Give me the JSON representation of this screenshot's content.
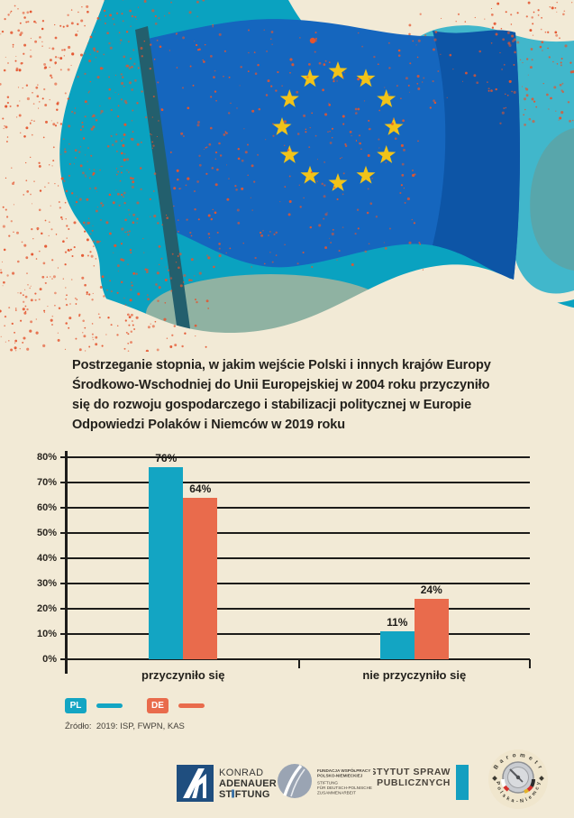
{
  "title": {
    "text": "Postrzeganie stopnia, w jakim wejście Polski i innych krajów Europy\nŚrodkowo-Wschodniej do Unii Europejskiej w 2004 roku przyczyniło\nsię do rozwoju gospodarczego i stabilizacji politycznej w Europie\nOdpowiedzi Polaków i Niemców w 2019 roku"
  },
  "chart_data": {
    "type": "bar",
    "categories": [
      "przyczyniło się",
      "nie przyczyniło się"
    ],
    "series": [
      {
        "name": "PL",
        "color": "#13a5c3",
        "values": [
          76,
          11
        ]
      },
      {
        "name": "DE",
        "color": "#e96b4c",
        "values": [
          64,
          24
        ]
      }
    ],
    "value_labels": [
      [
        "76%",
        "64%"
      ],
      [
        "11%",
        "24%"
      ]
    ],
    "ylim": [
      0,
      80
    ],
    "ytick_step": 10,
    "ytick_labels": [
      "0%",
      "10%",
      "20%",
      "30%",
      "40%",
      "50%",
      "60%",
      "70%",
      "80%"
    ],
    "grid": true,
    "legend_position": "bottom-left"
  },
  "legend": {
    "items": [
      {
        "code": "PL",
        "color": "#13a5c3"
      },
      {
        "code": "DE",
        "color": "#e96b4c"
      }
    ]
  },
  "source": {
    "text": "Źródło:  2019: ISP, FWPN, KAS"
  },
  "logos": {
    "kas": {
      "lines": [
        "KONRAD",
        "ADENAUER",
        "STIFTUNG"
      ]
    },
    "fwpn": {
      "lines": [
        "FUNDACJA WSPÓŁPRACY",
        "POLSKO-NIEMIECKIEJ",
        "STIFTUNG",
        "FÜR DEUTSCH-POLNISCHE",
        "ZUSAMMENARBEIT"
      ]
    },
    "isp": {
      "lines": [
        "INSTYTUT SPRAW",
        "PUBLICZNYCH"
      ]
    },
    "barometer": {
      "top_text": "B a r o m e t r",
      "bottom_text": "P o l s k a - N i e m c y"
    }
  },
  "colors": {
    "background_cream": "#f2ead6",
    "teal_main": "#0aa2c0",
    "teal_light": "#41b7cb",
    "sage": "#8fb2a2",
    "flag_blue": "#1566be",
    "flag_blue_dark": "#0d55a6",
    "star_yellow": "#f1c319",
    "pole_teal": "#235f6d",
    "speckle_red": "#e4552f",
    "text_dark": "#23211c"
  }
}
